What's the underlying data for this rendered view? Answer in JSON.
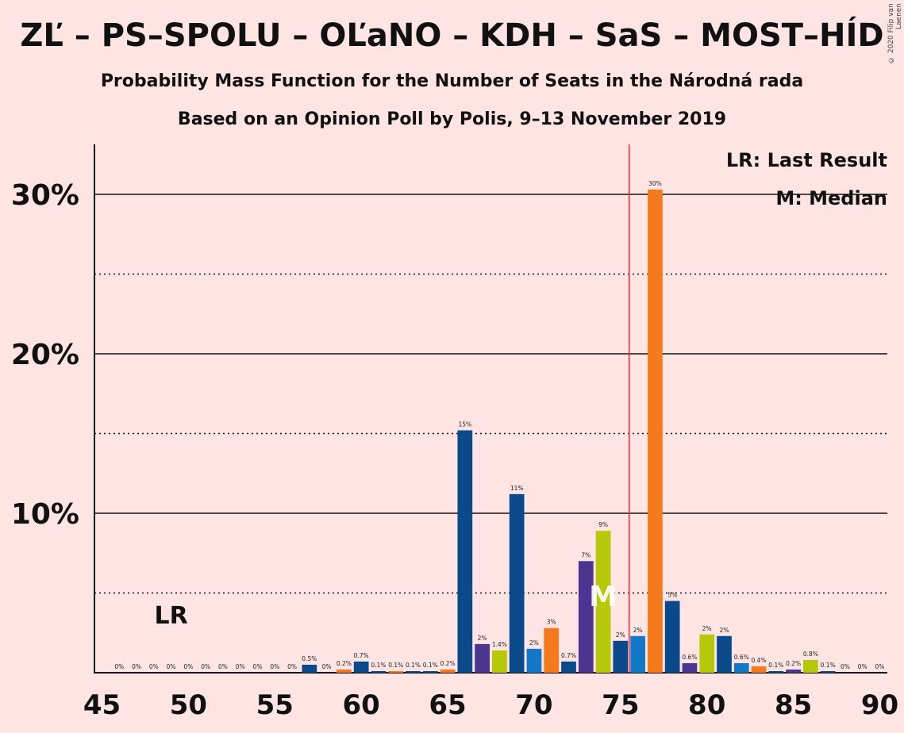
{
  "title": "ZĽ – PS–SPOLU – OĽaNO – KDH – SaS – MOST–HÍD",
  "subtitle": "Probability Mass Function for the Number of Seats in the Národná rada",
  "subtitle2": "Based on an Opinion Poll by Polis, 9–13 November 2019",
  "copyright": "© 2020 Filip van Laenen",
  "colors": {
    "background": "#FFE4E4",
    "navy": "#0A4A8A",
    "purple": "#4A3590",
    "lime": "#B5C80A",
    "blue": "#1478C8",
    "orange": "#F57A1E",
    "majority_line": "#E8323C"
  },
  "chart_data": {
    "type": "bar",
    "xlim": [
      45,
      90
    ],
    "ylim": [
      0,
      33
    ],
    "x_ticks": [
      "45",
      "50",
      "55",
      "60",
      "65",
      "70",
      "75",
      "80",
      "85",
      "90"
    ],
    "y_ticks": [
      {
        "value": 10,
        "label": "10%"
      },
      {
        "value": 20,
        "label": "20%"
      },
      {
        "value": 30,
        "label": "30%"
      }
    ],
    "dotted_gridlines": [
      5,
      15,
      25
    ],
    "majority_line": 76,
    "last_result": {
      "seat": 49,
      "label": "LR"
    },
    "median": {
      "seat": 74,
      "label": "M"
    },
    "legend": [
      "LR: Last Result",
      "M: Median"
    ],
    "legend_position": "top-right",
    "bars": [
      {
        "seat": 46,
        "value": 0,
        "label": "0%",
        "color": "navy"
      },
      {
        "seat": 47,
        "value": 0,
        "label": "0%",
        "color": "navy"
      },
      {
        "seat": 48,
        "value": 0,
        "label": "0%",
        "color": "navy"
      },
      {
        "seat": 49,
        "value": 0,
        "label": "0%",
        "color": "navy"
      },
      {
        "seat": 50,
        "value": 0,
        "label": "0%",
        "color": "navy"
      },
      {
        "seat": 51,
        "value": 0,
        "label": "0%",
        "color": "navy"
      },
      {
        "seat": 52,
        "value": 0,
        "label": "0%",
        "color": "navy"
      },
      {
        "seat": 53,
        "value": 0,
        "label": "0%",
        "color": "navy"
      },
      {
        "seat": 54,
        "value": 0,
        "label": "0%",
        "color": "navy"
      },
      {
        "seat": 55,
        "value": 0,
        "label": "0%",
        "color": "navy"
      },
      {
        "seat": 56,
        "value": 0,
        "label": "0%",
        "color": "navy"
      },
      {
        "seat": 57,
        "value": 0.5,
        "label": "0.5%",
        "color": "navy"
      },
      {
        "seat": 58,
        "value": 0,
        "label": "0%",
        "color": "navy"
      },
      {
        "seat": 59,
        "value": 0.2,
        "label": "0.2%",
        "color": "orange"
      },
      {
        "seat": 60,
        "value": 0.7,
        "label": "0.7%",
        "color": "navy"
      },
      {
        "seat": 61,
        "value": 0.1,
        "label": "0.1%",
        "color": "navy"
      },
      {
        "seat": 62,
        "value": 0.1,
        "label": "0.1%",
        "color": "orange"
      },
      {
        "seat": 63,
        "value": 0.1,
        "label": "0.1%",
        "color": "navy"
      },
      {
        "seat": 64,
        "value": 0.1,
        "label": "0.1%",
        "color": "navy"
      },
      {
        "seat": 65,
        "value": 0.2,
        "label": "0.2%",
        "color": "orange"
      },
      {
        "seat": 66,
        "value": 15.2,
        "label": "15%",
        "color": "navy"
      },
      {
        "seat": 67,
        "value": 1.8,
        "label": "2%",
        "color": "purple"
      },
      {
        "seat": 68,
        "value": 1.4,
        "label": "1.4%",
        "color": "lime"
      },
      {
        "seat": 69,
        "value": 11.2,
        "label": "11%",
        "color": "navy"
      },
      {
        "seat": 70,
        "value": 1.5,
        "label": "2%",
        "color": "blue"
      },
      {
        "seat": 71,
        "value": 2.8,
        "label": "3%",
        "color": "orange"
      },
      {
        "seat": 72,
        "value": 0.7,
        "label": "0.7%",
        "color": "navy"
      },
      {
        "seat": 73,
        "value": 7.0,
        "label": "7%",
        "color": "purple"
      },
      {
        "seat": 74,
        "value": 8.9,
        "label": "9%",
        "color": "lime"
      },
      {
        "seat": 75,
        "value": 2.0,
        "label": "2%",
        "color": "navy"
      },
      {
        "seat": 76,
        "value": 2.3,
        "label": "2%",
        "color": "blue"
      },
      {
        "seat": 77,
        "value": 30.3,
        "label": "30%",
        "color": "orange"
      },
      {
        "seat": 78,
        "value": 4.5,
        "label": "5%",
        "color": "navy"
      },
      {
        "seat": 79,
        "value": 0.6,
        "label": "0.6%",
        "color": "purple"
      },
      {
        "seat": 80,
        "value": 2.4,
        "label": "2%",
        "color": "lime"
      },
      {
        "seat": 81,
        "value": 2.3,
        "label": "2%",
        "color": "navy"
      },
      {
        "seat": 82,
        "value": 0.6,
        "label": "0.6%",
        "color": "blue"
      },
      {
        "seat": 83,
        "value": 0.4,
        "label": "0.4%",
        "color": "orange"
      },
      {
        "seat": 84,
        "value": 0.1,
        "label": "0.1%",
        "color": "navy"
      },
      {
        "seat": 85,
        "value": 0.2,
        "label": "0.2%",
        "color": "purple"
      },
      {
        "seat": 86,
        "value": 0.8,
        "label": "0.8%",
        "color": "lime"
      },
      {
        "seat": 87,
        "value": 0.1,
        "label": "0.1%",
        "color": "navy"
      },
      {
        "seat": 88,
        "value": 0,
        "label": "0%",
        "color": "navy"
      },
      {
        "seat": 89,
        "value": 0,
        "label": "0%",
        "color": "navy"
      },
      {
        "seat": 90,
        "value": 0,
        "label": "0%",
        "color": "navy"
      }
    ]
  }
}
